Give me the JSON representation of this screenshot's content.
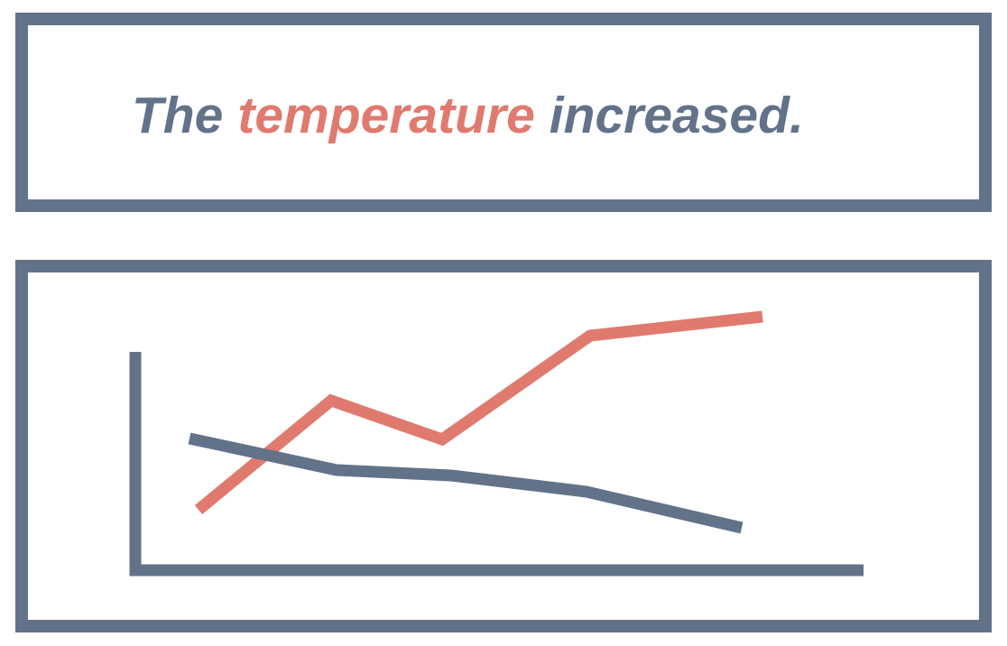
{
  "headline": {
    "parts": [
      "The",
      "temperature",
      "increased."
    ]
  }
}
